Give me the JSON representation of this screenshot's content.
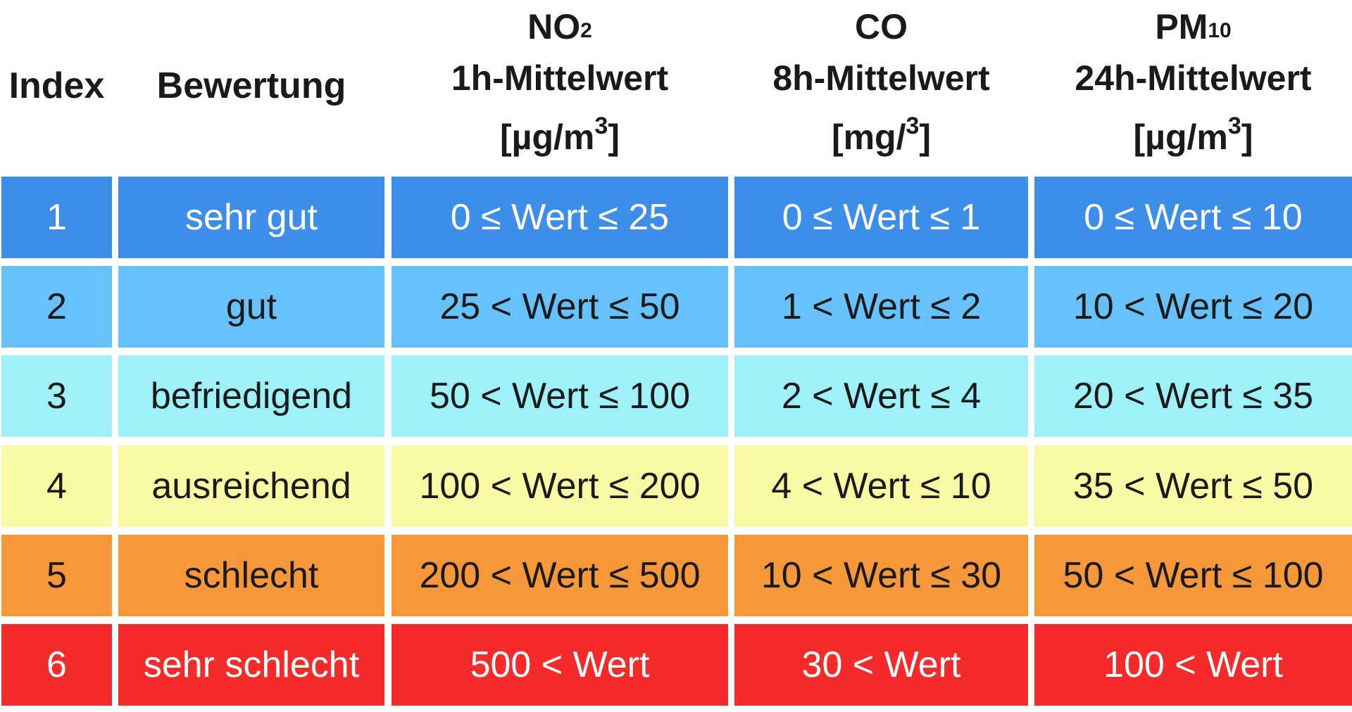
{
  "header": {
    "index": "Index",
    "bewertung": "Bewertung",
    "no2": {
      "name": "NO",
      "sub": "2",
      "period": "1h-Mittelwert",
      "unit_open": "[µg/m",
      "unit_sup": "3",
      "unit_close": "]"
    },
    "co": {
      "name": "CO",
      "period": "8h-Mittelwert",
      "unit_open": "[mg/",
      "unit_sup": "3",
      "unit_close": "]"
    },
    "pm10": {
      "name": "PM",
      "sub": "10",
      "period": "24h-Mittelwert",
      "unit_open": "[µg/m",
      "unit_sup": "3",
      "unit_close": "]"
    }
  },
  "rows": [
    {
      "index": "1",
      "bewertung": "sehr gut",
      "no2": "0 ≤ Wert ≤ 25",
      "co": "0 ≤ Wert ≤ 1",
      "pm10": "0 ≤ Wert ≤ 10",
      "color": "#3d8ee8",
      "text_color": "#ffffff"
    },
    {
      "index": "2",
      "bewertung": "gut",
      "no2": "25 < Wert ≤ 50",
      "co": "1 < Wert ≤ 2",
      "pm10": "10 < Wert ≤ 20",
      "color": "#67c2fb",
      "text_color": "#1a1a1a"
    },
    {
      "index": "3",
      "bewertung": "befriedigend",
      "no2": "50 < Wert ≤ 100",
      "co": "2 < Wert ≤ 4",
      "pm10": "20 < Wert ≤ 35",
      "color": "#9ef1f8",
      "text_color": "#1a1a1a"
    },
    {
      "index": "4",
      "bewertung": "ausreichend",
      "no2": "100 < Wert ≤ 200",
      "co": "4 < Wert ≤ 10",
      "pm10": "35 < Wert ≤ 50",
      "color": "#fbfaa4",
      "text_color": "#1a1a1a"
    },
    {
      "index": "5",
      "bewertung": "schlecht",
      "no2": "200 < Wert ≤ 500",
      "co": "10 < Wert ≤ 30",
      "pm10": "50 < Wert ≤ 100",
      "color": "#f6983a",
      "text_color": "#1a1a1a"
    },
    {
      "index": "6",
      "bewertung": "sehr schlecht",
      "no2": "500 < Wert",
      "co": "30 < Wert",
      "pm10": "100 < Wert",
      "color": "#f42a2b",
      "text_color": "#ffffff"
    }
  ]
}
